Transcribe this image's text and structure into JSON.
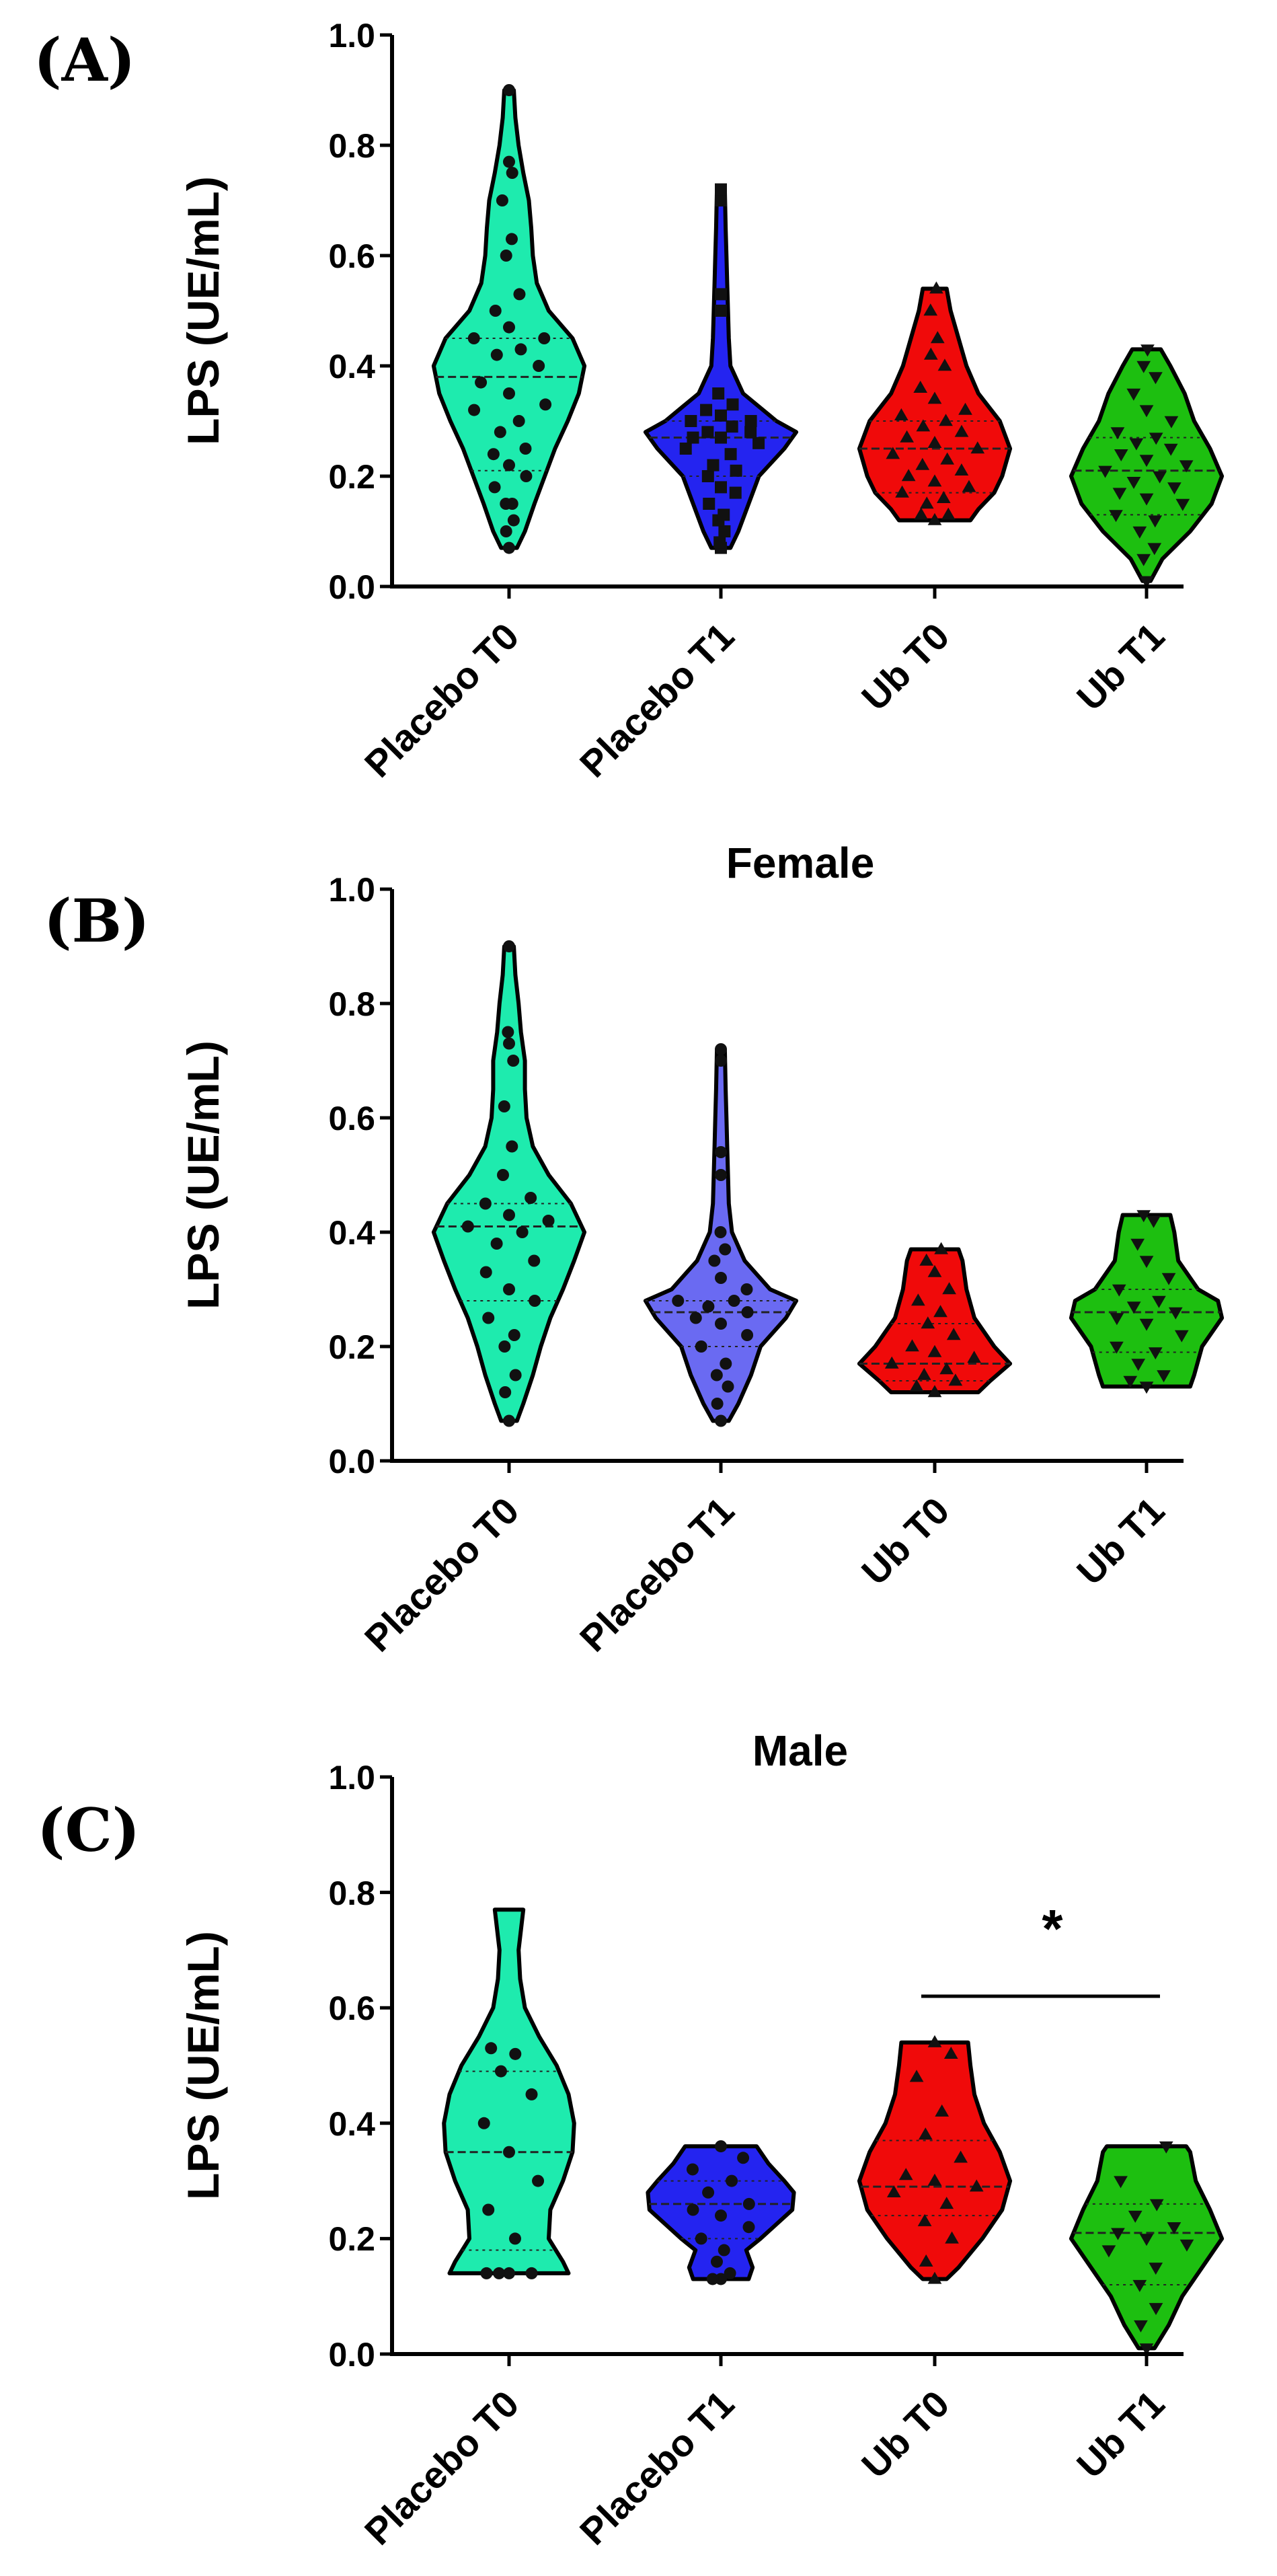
{
  "chart_data": [
    {
      "panel": "(A)",
      "title": "",
      "type": "violin",
      "ylabel": "LPS (UE/mL)",
      "ylim": [
        0,
        1.0
      ],
      "yticks": [
        "0.0",
        "0.2",
        "0.4",
        "0.6",
        "0.8",
        "1.0"
      ],
      "categories": [
        "Placebo T0",
        "Placebo T1",
        "Ub T0",
        "Ub T1"
      ],
      "colors": [
        "#1EEBAE",
        "#2424F0",
        "#F00A0A",
        "#1DBF10"
      ],
      "markers": [
        "circle",
        "square",
        "triangle-up",
        "triangle-down"
      ],
      "series": [
        {
          "name": "Placebo T0",
          "median": 0.38,
          "q1": 0.21,
          "q3": 0.45,
          "density": [
            [
              0.07,
              0.1
            ],
            [
              0.1,
              0.2
            ],
            [
              0.15,
              0.32
            ],
            [
              0.2,
              0.45
            ],
            [
              0.25,
              0.58
            ],
            [
              0.3,
              0.74
            ],
            [
              0.35,
              0.88
            ],
            [
              0.4,
              0.95
            ],
            [
              0.45,
              0.8
            ],
            [
              0.5,
              0.5
            ],
            [
              0.55,
              0.35
            ],
            [
              0.6,
              0.3
            ],
            [
              0.65,
              0.28
            ],
            [
              0.7,
              0.25
            ],
            [
              0.75,
              0.18
            ],
            [
              0.8,
              0.12
            ],
            [
              0.85,
              0.08
            ],
            [
              0.9,
              0.06
            ]
          ],
          "points": [
            0.07,
            0.1,
            0.12,
            0.15,
            0.15,
            0.18,
            0.2,
            0.22,
            0.24,
            0.25,
            0.28,
            0.3,
            0.32,
            0.33,
            0.35,
            0.37,
            0.4,
            0.42,
            0.43,
            0.45,
            0.45,
            0.47,
            0.5,
            0.53,
            0.6,
            0.63,
            0.7,
            0.75,
            0.77,
            0.9
          ]
        },
        {
          "name": "Placebo T1",
          "median": 0.27,
          "q1": 0.2,
          "q3": 0.3,
          "density": [
            [
              0.07,
              0.12
            ],
            [
              0.1,
              0.22
            ],
            [
              0.15,
              0.35
            ],
            [
              0.2,
              0.48
            ],
            [
              0.25,
              0.8
            ],
            [
              0.28,
              0.95
            ],
            [
              0.3,
              0.7
            ],
            [
              0.35,
              0.28
            ],
            [
              0.4,
              0.12
            ],
            [
              0.45,
              0.1
            ],
            [
              0.5,
              0.09
            ],
            [
              0.55,
              0.08
            ],
            [
              0.6,
              0.07
            ],
            [
              0.65,
              0.06
            ],
            [
              0.72,
              0.05
            ]
          ],
          "points": [
            0.07,
            0.08,
            0.1,
            0.12,
            0.13,
            0.15,
            0.17,
            0.18,
            0.2,
            0.21,
            0.22,
            0.24,
            0.25,
            0.26,
            0.27,
            0.27,
            0.28,
            0.28,
            0.29,
            0.3,
            0.3,
            0.31,
            0.32,
            0.33,
            0.35,
            0.5,
            0.53,
            0.7,
            0.72
          ]
        },
        {
          "name": "Ub T0",
          "median": 0.25,
          "q1": 0.17,
          "q3": 0.3,
          "density": [
            [
              0.12,
              0.45
            ],
            [
              0.14,
              0.55
            ],
            [
              0.17,
              0.75
            ],
            [
              0.2,
              0.85
            ],
            [
              0.25,
              0.95
            ],
            [
              0.3,
              0.82
            ],
            [
              0.35,
              0.55
            ],
            [
              0.4,
              0.4
            ],
            [
              0.45,
              0.3
            ],
            [
              0.5,
              0.2
            ],
            [
              0.54,
              0.15
            ]
          ],
          "points": [
            0.12,
            0.13,
            0.13,
            0.15,
            0.16,
            0.17,
            0.18,
            0.19,
            0.2,
            0.21,
            0.22,
            0.23,
            0.24,
            0.25,
            0.26,
            0.27,
            0.28,
            0.29,
            0.3,
            0.31,
            0.32,
            0.34,
            0.36,
            0.4,
            0.42,
            0.45,
            0.5,
            0.54
          ]
        },
        {
          "name": "Ub T1",
          "median": 0.21,
          "q1": 0.13,
          "q3": 0.27,
          "density": [
            [
              0.01,
              0.05
            ],
            [
              0.05,
              0.2
            ],
            [
              0.1,
              0.55
            ],
            [
              0.15,
              0.82
            ],
            [
              0.2,
              0.95
            ],
            [
              0.25,
              0.8
            ],
            [
              0.3,
              0.6
            ],
            [
              0.35,
              0.48
            ],
            [
              0.4,
              0.3
            ],
            [
              0.43,
              0.18
            ]
          ],
          "points": [
            0.01,
            0.05,
            0.07,
            0.1,
            0.12,
            0.13,
            0.15,
            0.16,
            0.17,
            0.18,
            0.19,
            0.2,
            0.21,
            0.22,
            0.23,
            0.24,
            0.25,
            0.26,
            0.27,
            0.28,
            0.3,
            0.32,
            0.35,
            0.38,
            0.4,
            0.43
          ]
        }
      ],
      "significance": null
    },
    {
      "panel": "(B)",
      "title": "Female",
      "type": "violin",
      "ylabel": "LPS (UE/mL)",
      "ylim": [
        0,
        1.0
      ],
      "yticks": [
        "0.0",
        "0.2",
        "0.4",
        "0.6",
        "0.8",
        "1.0"
      ],
      "categories": [
        "Placebo T0",
        "Placebo T1",
        "Ub T0",
        "Ub T1"
      ],
      "colors": [
        "#1EEBAE",
        "#6A6AF2",
        "#F00A0A",
        "#1DBF10"
      ],
      "markers": [
        "circle",
        "circle",
        "triangle-up",
        "triangle-down"
      ],
      "series": [
        {
          "name": "Placebo T0",
          "median": 0.41,
          "q1": 0.28,
          "q3": 0.45,
          "density": [
            [
              0.07,
              0.1
            ],
            [
              0.1,
              0.18
            ],
            [
              0.15,
              0.3
            ],
            [
              0.2,
              0.4
            ],
            [
              0.25,
              0.52
            ],
            [
              0.3,
              0.68
            ],
            [
              0.35,
              0.82
            ],
            [
              0.4,
              0.95
            ],
            [
              0.45,
              0.78
            ],
            [
              0.5,
              0.5
            ],
            [
              0.55,
              0.3
            ],
            [
              0.6,
              0.22
            ],
            [
              0.65,
              0.2
            ],
            [
              0.7,
              0.2
            ],
            [
              0.75,
              0.15
            ],
            [
              0.8,
              0.12
            ],
            [
              0.85,
              0.08
            ],
            [
              0.9,
              0.06
            ]
          ],
          "points": [
            0.07,
            0.12,
            0.15,
            0.2,
            0.22,
            0.25,
            0.28,
            0.3,
            0.33,
            0.35,
            0.38,
            0.4,
            0.41,
            0.42,
            0.43,
            0.45,
            0.46,
            0.5,
            0.55,
            0.62,
            0.7,
            0.73,
            0.75,
            0.9
          ]
        },
        {
          "name": "Placebo T1",
          "median": 0.26,
          "q1": 0.2,
          "q3": 0.28,
          "density": [
            [
              0.07,
              0.1
            ],
            [
              0.1,
              0.22
            ],
            [
              0.15,
              0.38
            ],
            [
              0.2,
              0.5
            ],
            [
              0.25,
              0.82
            ],
            [
              0.28,
              0.95
            ],
            [
              0.3,
              0.62
            ],
            [
              0.35,
              0.3
            ],
            [
              0.4,
              0.14
            ],
            [
              0.45,
              0.1
            ],
            [
              0.5,
              0.09
            ],
            [
              0.55,
              0.08
            ],
            [
              0.6,
              0.07
            ],
            [
              0.65,
              0.06
            ],
            [
              0.72,
              0.05
            ]
          ],
          "points": [
            0.07,
            0.1,
            0.13,
            0.15,
            0.17,
            0.2,
            0.22,
            0.24,
            0.25,
            0.26,
            0.27,
            0.28,
            0.28,
            0.3,
            0.32,
            0.35,
            0.37,
            0.4,
            0.5,
            0.54,
            0.7,
            0.72
          ]
        },
        {
          "name": "Ub T0",
          "median": 0.17,
          "q1": 0.14,
          "q3": 0.24,
          "density": [
            [
              0.12,
              0.55
            ],
            [
              0.14,
              0.7
            ],
            [
              0.17,
              0.95
            ],
            [
              0.2,
              0.75
            ],
            [
              0.25,
              0.5
            ],
            [
              0.3,
              0.4
            ],
            [
              0.35,
              0.35
            ],
            [
              0.37,
              0.3
            ]
          ],
          "points": [
            0.12,
            0.13,
            0.14,
            0.15,
            0.16,
            0.17,
            0.18,
            0.19,
            0.2,
            0.22,
            0.24,
            0.26,
            0.28,
            0.3,
            0.33,
            0.35,
            0.37
          ]
        },
        {
          "name": "Ub T1",
          "median": 0.26,
          "q1": 0.19,
          "q3": 0.3,
          "density": [
            [
              0.13,
              0.55
            ],
            [
              0.15,
              0.6
            ],
            [
              0.2,
              0.7
            ],
            [
              0.25,
              0.95
            ],
            [
              0.28,
              0.9
            ],
            [
              0.3,
              0.65
            ],
            [
              0.35,
              0.4
            ],
            [
              0.4,
              0.35
            ],
            [
              0.43,
              0.3
            ]
          ],
          "points": [
            0.13,
            0.14,
            0.15,
            0.17,
            0.19,
            0.2,
            0.22,
            0.24,
            0.25,
            0.26,
            0.27,
            0.28,
            0.3,
            0.32,
            0.35,
            0.38,
            0.42,
            0.43
          ]
        }
      ],
      "significance": null
    },
    {
      "panel": "(C)",
      "title": "Male",
      "type": "violin",
      "ylabel": "LPS (UE/mL)",
      "ylim": [
        0,
        1.0
      ],
      "yticks": [
        "0.0",
        "0.2",
        "0.4",
        "0.6",
        "0.8",
        "1.0"
      ],
      "categories": [
        "Placebo T0",
        "Placebo T1",
        "Ub T0",
        "Ub T1"
      ],
      "colors": [
        "#1EEBAE",
        "#2424F0",
        "#F00A0A",
        "#1DBF10"
      ],
      "markers": [
        "circle",
        "circle",
        "triangle-up",
        "triangle-down"
      ],
      "series": [
        {
          "name": "Placebo T0",
          "median": 0.35,
          "q1": 0.18,
          "q3": 0.49,
          "density": [
            [
              0.14,
              0.75
            ],
            [
              0.16,
              0.68
            ],
            [
              0.2,
              0.5
            ],
            [
              0.25,
              0.52
            ],
            [
              0.3,
              0.68
            ],
            [
              0.35,
              0.8
            ],
            [
              0.4,
              0.82
            ],
            [
              0.45,
              0.75
            ],
            [
              0.5,
              0.6
            ],
            [
              0.55,
              0.38
            ],
            [
              0.6,
              0.2
            ],
            [
              0.65,
              0.14
            ],
            [
              0.7,
              0.12
            ],
            [
              0.77,
              0.18
            ]
          ],
          "points": [
            0.14,
            0.14,
            0.14,
            0.14,
            0.2,
            0.25,
            0.3,
            0.35,
            0.4,
            0.45,
            0.49,
            0.52,
            0.53
          ]
        },
        {
          "name": "Placebo T1",
          "median": 0.26,
          "q1": 0.2,
          "q3": 0.3,
          "density": [
            [
              0.13,
              0.35
            ],
            [
              0.15,
              0.4
            ],
            [
              0.18,
              0.32
            ],
            [
              0.2,
              0.5
            ],
            [
              0.25,
              0.9
            ],
            [
              0.28,
              0.92
            ],
            [
              0.3,
              0.8
            ],
            [
              0.33,
              0.6
            ],
            [
              0.36,
              0.45
            ]
          ],
          "points": [
            0.13,
            0.13,
            0.14,
            0.16,
            0.18,
            0.2,
            0.22,
            0.24,
            0.25,
            0.26,
            0.28,
            0.3,
            0.32,
            0.34,
            0.36
          ]
        },
        {
          "name": "Ub T0",
          "median": 0.29,
          "q1": 0.24,
          "q3": 0.37,
          "density": [
            [
              0.13,
              0.15
            ],
            [
              0.15,
              0.3
            ],
            [
              0.2,
              0.6
            ],
            [
              0.25,
              0.85
            ],
            [
              0.3,
              0.95
            ],
            [
              0.35,
              0.82
            ],
            [
              0.4,
              0.62
            ],
            [
              0.45,
              0.5
            ],
            [
              0.5,
              0.45
            ],
            [
              0.54,
              0.42
            ]
          ],
          "points": [
            0.13,
            0.16,
            0.2,
            0.23,
            0.26,
            0.28,
            0.29,
            0.3,
            0.31,
            0.34,
            0.38,
            0.42,
            0.48,
            0.52,
            0.54
          ]
        },
        {
          "name": "Ub T1",
          "median": 0.21,
          "q1": 0.12,
          "q3": 0.26,
          "density": [
            [
              0.01,
              0.1
            ],
            [
              0.05,
              0.28
            ],
            [
              0.1,
              0.45
            ],
            [
              0.15,
              0.7
            ],
            [
              0.2,
              0.95
            ],
            [
              0.25,
              0.8
            ],
            [
              0.3,
              0.62
            ],
            [
              0.35,
              0.55
            ],
            [
              0.36,
              0.5
            ]
          ],
          "points": [
            0.01,
            0.05,
            0.08,
            0.12,
            0.15,
            0.18,
            0.19,
            0.2,
            0.21,
            0.22,
            0.24,
            0.26,
            0.3,
            0.36
          ]
        }
      ],
      "significance": {
        "from": "Ub T0",
        "to": "Ub T1",
        "y": 0.62,
        "label": "*"
      }
    }
  ]
}
